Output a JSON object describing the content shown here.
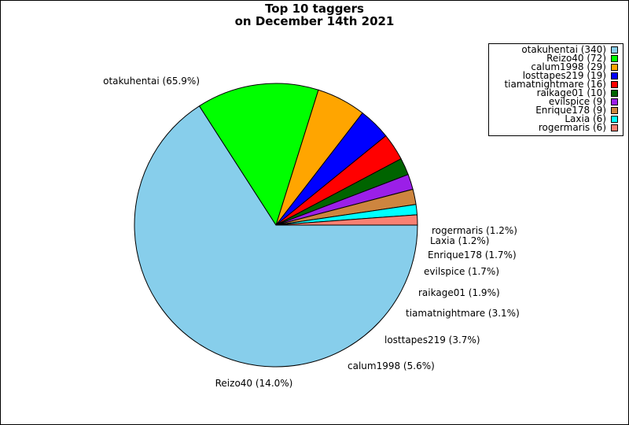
{
  "title": [
    "Top 10 taggers",
    "on December 14th 2021"
  ],
  "chart_data": {
    "type": "pie",
    "title": "Top 10 taggers on December 14th 2021",
    "start_angle_deg": 0,
    "direction": "clockwise",
    "legend_position": "top-right",
    "slices": [
      {
        "name": "otakuhentai",
        "value": 340,
        "legend": "otakuhentai (340)",
        "label": "otakuhentai (65.9%)",
        "color": "#87ceeb"
      },
      {
        "name": "Reizo40",
        "value": 72,
        "legend": "Reizo40 (72)",
        "label": "Reizo40 (14.0%)",
        "color": "#00ff00"
      },
      {
        "name": "calum1998",
        "value": 29,
        "legend": "calum1998 (29)",
        "label": "calum1998 (5.6%)",
        "color": "#ffa500"
      },
      {
        "name": "losttapes219",
        "value": 19,
        "legend": "losttapes219 (19)",
        "label": "losttapes219 (3.7%)",
        "color": "#0000ff"
      },
      {
        "name": "tiamatnightmare",
        "value": 16,
        "legend": "tiamatnightmare (16)",
        "label": "tiamatnightmare (3.1%)",
        "color": "#ff0000"
      },
      {
        "name": "raikage01",
        "value": 10,
        "legend": "raikage01 (10)",
        "label": "raikage01 (1.9%)",
        "color": "#006400"
      },
      {
        "name": "evilspice",
        "value": 9,
        "legend": "evilspice (9)",
        "label": "evilspice (1.7%)",
        "color": "#9b1fe8"
      },
      {
        "name": "Enrique178",
        "value": 9,
        "legend": "Enrique178 (9)",
        "label": "Enrique178 (1.7%)",
        "color": "#cd853f"
      },
      {
        "name": "Laxia",
        "value": 6,
        "legend": "Laxia (6)",
        "label": "Laxia (1.2%)",
        "color": "#00ffff"
      },
      {
        "name": "rogermaris",
        "value": 6,
        "legend": "rogermaris (6)",
        "label": "rogermaris (1.2%)",
        "color": "#fa8072"
      }
    ]
  }
}
